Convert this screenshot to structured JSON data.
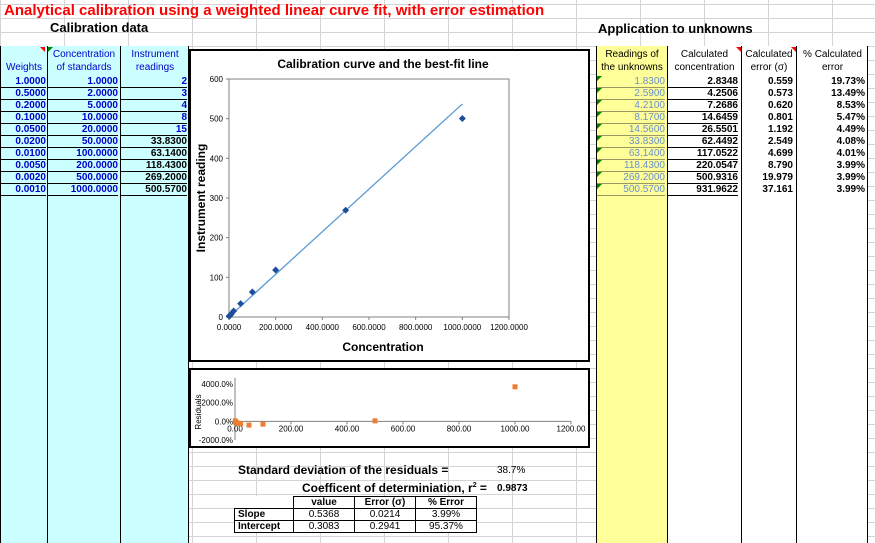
{
  "title": "Analytical calibration using a weighted linear curve fit, with error estimation",
  "sections": {
    "calibration": "Calibration data",
    "application": "Application to unknowns"
  },
  "calibration_table": {
    "headers": {
      "weights": "Weights",
      "conc_line1": "Concentration",
      "conc_line2": "of standards",
      "instr_line1": "Instrument",
      "instr_line2": "readings"
    },
    "rows": [
      {
        "weight": "1.0000",
        "conc": "1.0000",
        "reading": "2"
      },
      {
        "weight": "0.5000",
        "conc": "2.0000",
        "reading": "3"
      },
      {
        "weight": "0.2000",
        "conc": "5.0000",
        "reading": "4"
      },
      {
        "weight": "0.1000",
        "conc": "10.0000",
        "reading": "8"
      },
      {
        "weight": "0.0500",
        "conc": "20.0000",
        "reading": "15"
      },
      {
        "weight": "0.0200",
        "conc": "50.0000",
        "reading": "33.8300"
      },
      {
        "weight": "0.0100",
        "conc": "100.0000",
        "reading": "63.1400"
      },
      {
        "weight": "0.0050",
        "conc": "200.0000",
        "reading": "118.4300"
      },
      {
        "weight": "0.0020",
        "conc": "500.0000",
        "reading": "269.2000"
      },
      {
        "weight": "0.0010",
        "conc": "1000.0000",
        "reading": "500.5700"
      }
    ]
  },
  "unknowns_table": {
    "headers": {
      "read_line1": "Readings of",
      "read_line2": "the unknowns",
      "calc_line1": "Calculated",
      "calc_line2": "concentration",
      "err_line1": "Calculated",
      "err_line2": "error (σ)",
      "pct_line1": "% Calculated",
      "pct_line2": "error"
    },
    "rows": [
      {
        "reading": "1.8300",
        "conc": "2.8348",
        "err": "0.559",
        "pct": "19.73%"
      },
      {
        "reading": "2.5900",
        "conc": "4.2506",
        "err": "0.573",
        "pct": "13.49%"
      },
      {
        "reading": "4.2100",
        "conc": "7.2686",
        "err": "0.620",
        "pct": "8.53%"
      },
      {
        "reading": "8.1700",
        "conc": "14.6459",
        "err": "0.801",
        "pct": "5.47%"
      },
      {
        "reading": "14.5600",
        "conc": "26.5501",
        "err": "1.192",
        "pct": "4.49%"
      },
      {
        "reading": "33.8300",
        "conc": "62.4492",
        "err": "2.549",
        "pct": "4.08%"
      },
      {
        "reading": "63.1400",
        "conc": "117.0522",
        "err": "4.699",
        "pct": "4.01%"
      },
      {
        "reading": "118.4300",
        "conc": "220.0547",
        "err": "8.790",
        "pct": "3.99%"
      },
      {
        "reading": "269.2000",
        "conc": "500.9316",
        "err": "19.979",
        "pct": "3.99%"
      },
      {
        "reading": "500.5700",
        "conc": "931.9622",
        "err": "37.161",
        "pct": "3.99%"
      }
    ]
  },
  "chart_data": [
    {
      "type": "scatter",
      "title": "Calibration curve and the best-fit line",
      "xlabel": "Concentration",
      "ylabel": "Instrument reading",
      "xlim": [
        0,
        1200
      ],
      "ylim": [
        0,
        600
      ],
      "x_ticks": [
        "0.0000",
        "200.0000",
        "400.0000",
        "600.0000",
        "800.0000",
        "1000.0000",
        "1200.0000"
      ],
      "y_ticks": [
        "0",
        "100",
        "200",
        "300",
        "400",
        "500",
        "600"
      ],
      "points": {
        "x": [
          1,
          2,
          5,
          10,
          20,
          50,
          100,
          200,
          500,
          1000
        ],
        "y": [
          2,
          3,
          4,
          8,
          15,
          33.83,
          63.14,
          118.43,
          269.2,
          500.57
        ]
      },
      "fit_line": {
        "slope": 0.5368,
        "intercept": 0.3083,
        "x_range": [
          0,
          1000
        ]
      },
      "point_color": "#1f4e9a",
      "line_color": "#5b9bd5"
    },
    {
      "type": "scatter",
      "title": "",
      "xlabel": "",
      "ylabel": "Residuals",
      "xlim": [
        0,
        1200
      ],
      "ylim": [
        -2000,
        4000
      ],
      "x_ticks": [
        "0.00",
        "200.00",
        "400.00",
        "600.00",
        "800.00",
        "1000.00",
        "1200.00"
      ],
      "y_ticks": [
        "-2000.0%",
        "0.0%",
        "2000.0%",
        "4000.0%"
      ],
      "points": {
        "x": [
          1,
          2,
          5,
          10,
          20,
          50,
          100,
          500,
          1000
        ],
        "y": [
          50,
          -100,
          -150,
          -200,
          -250,
          -400,
          -300,
          50,
          3700
        ]
      },
      "point_color": "#ed7d31"
    }
  ],
  "stats": {
    "sd_label": "Standard deviation of the residuals =",
    "sd_value": "38.7%",
    "r2_label": "Coefficent of determiniation, r",
    "r2_sup": "2",
    "r2_eq": " =",
    "r2_value": "0.9873",
    "fit_table": {
      "headers": [
        "",
        "value",
        "Error (σ)",
        "% Error"
      ],
      "rows": [
        {
          "label": "Slope",
          "value": "0.5368",
          "error": "0.0214",
          "pct": "3.99%"
        },
        {
          "label": "Intercept",
          "value": "0.3083",
          "error": "0.2941",
          "pct": "95.37%"
        }
      ]
    }
  }
}
